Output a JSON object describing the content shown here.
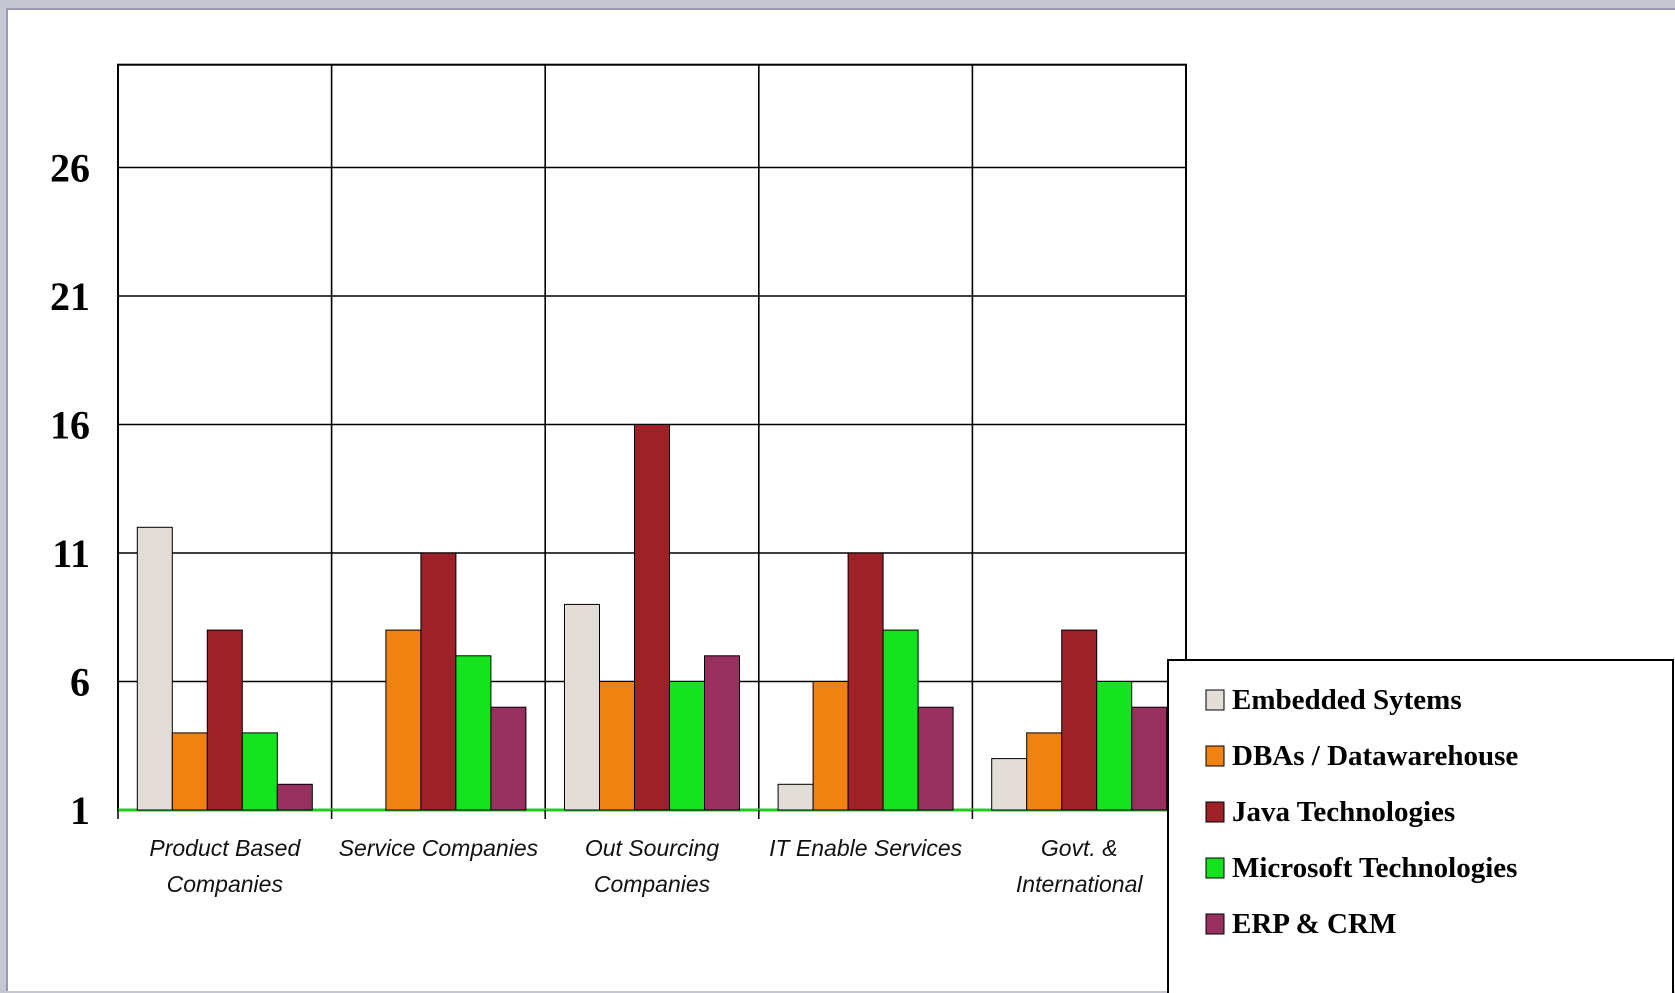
{
  "chart_data": {
    "type": "bar",
    "categories": [
      [
        "Product Based",
        "Companies"
      ],
      [
        "Service Companies"
      ],
      [
        "Out Sourcing",
        "Companies"
      ],
      [
        "IT Enable Services"
      ],
      [
        "Govt. &",
        "International"
      ]
    ],
    "series": [
      {
        "name": "Embedded Sytems",
        "color": "#e2ddd6",
        "values": [
          12,
          1,
          9,
          2,
          3
        ]
      },
      {
        "name": "DBAs / Datawarehouse",
        "color": "#f08212",
        "values": [
          4,
          8,
          6,
          6,
          4
        ]
      },
      {
        "name": "Java Technologies",
        "color": "#9e2128",
        "values": [
          8,
          11,
          16,
          11,
          8
        ]
      },
      {
        "name": "Microsoft Technologies",
        "color": "#14e41e",
        "values": [
          4,
          7,
          6,
          8,
          6
        ]
      },
      {
        "name": "ERP & CRM",
        "color": "#97305f",
        "values": [
          2,
          5,
          7,
          5,
          5
        ]
      }
    ],
    "yticks": [
      1,
      6,
      11,
      16,
      21,
      26
    ],
    "ylim": [
      1,
      30
    ],
    "grid": true,
    "legend_position": "bottom-right",
    "baseline_color": "#22cc22"
  }
}
